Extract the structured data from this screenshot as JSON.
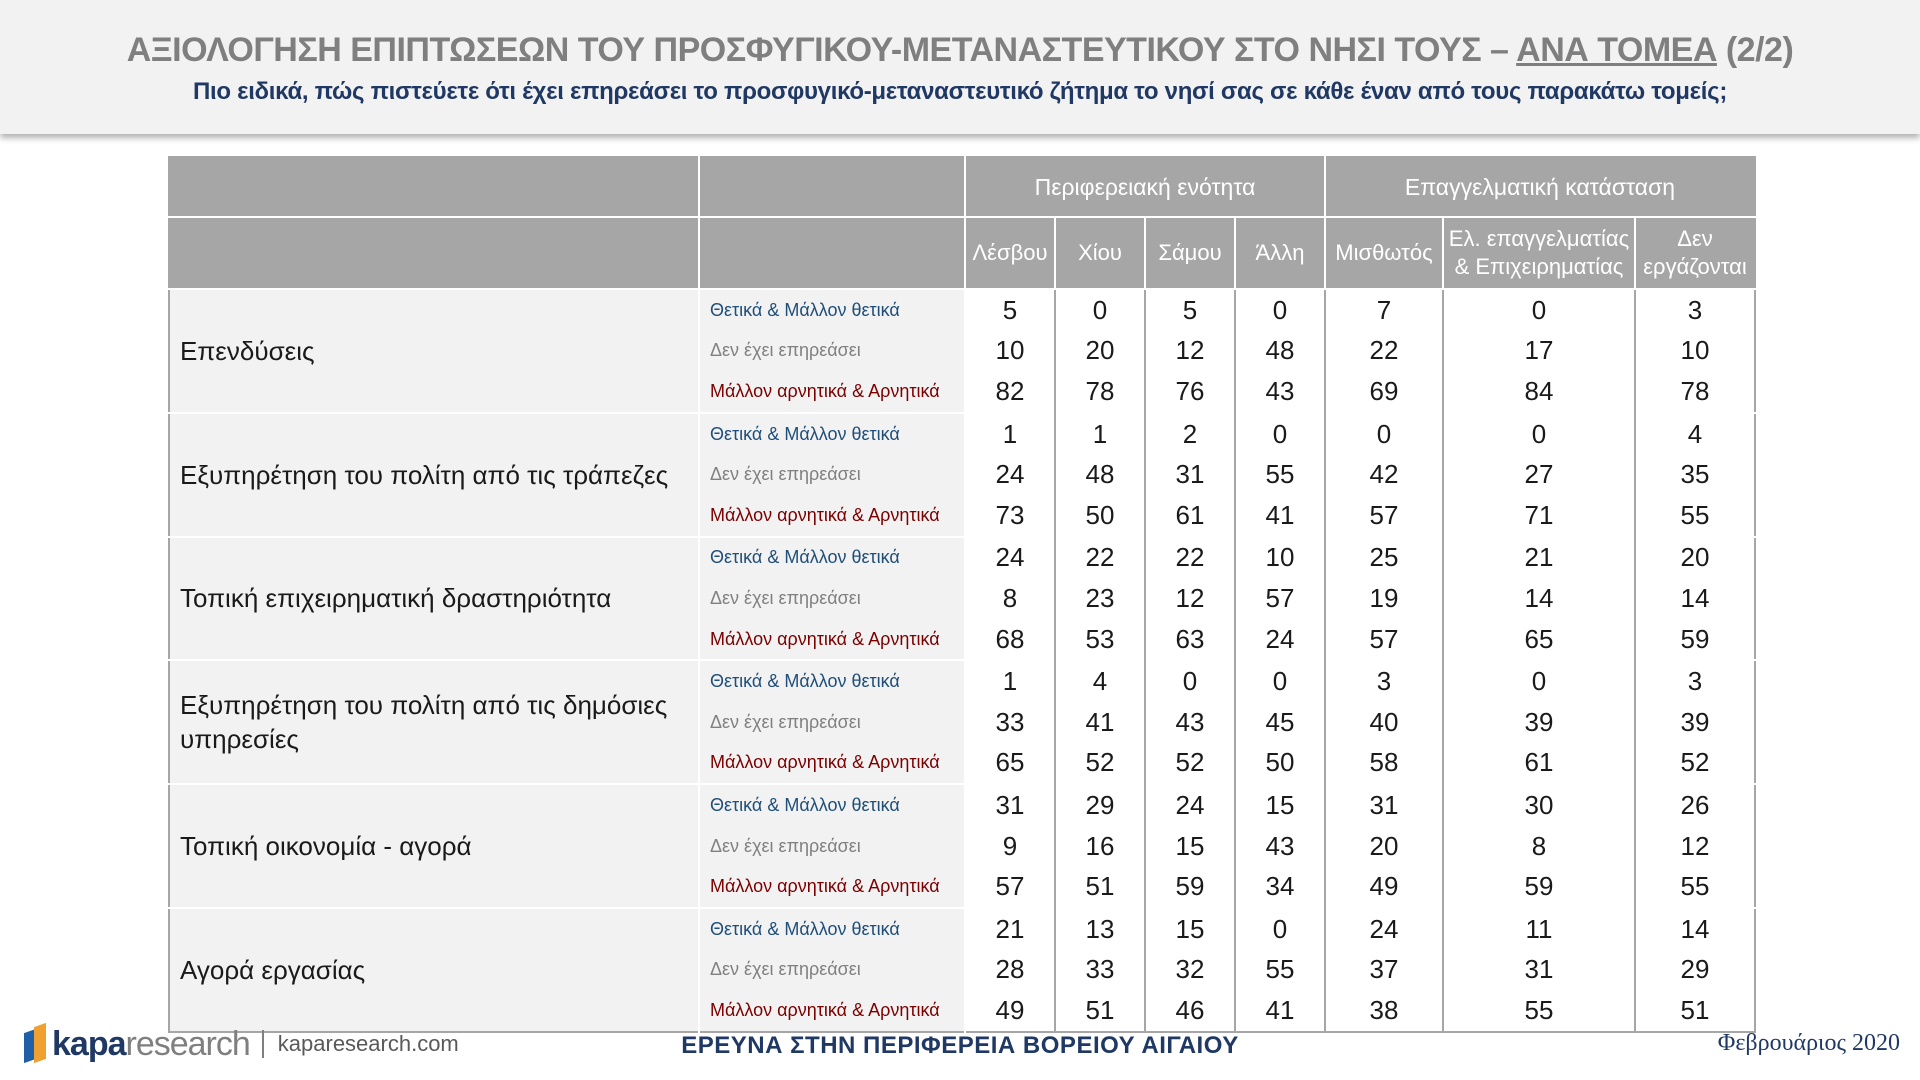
{
  "header": {
    "title_main": "ΑΞΙΟΛΟΓΗΣΗ ΕΠΙΠΤΩΣΕΩΝ ΤΟΥ ΠΡΟΣΦΥΓΙΚΟΥ-ΜΕΤΑΝΑΣΤΕΥΤΙΚΟΥ ΣΤΟ ΝΗΣΙ ΤΟΥΣ – ",
    "title_underlined": "ΑΝΑ ΤΟΜΕΑ",
    "title_suffix": " (2/2)",
    "subtitle": "Πιο ειδικά, πώς πιστεύετε ότι έχει επηρεάσει το προσφυγικό-μεταναστευτικό ζήτημα το νησί σας σε κάθε έναν από τους παρακάτω τομείς;"
  },
  "table": {
    "group_headers": [
      "Περιφερειακή ενότητα",
      "Επαγγελματική κατάσταση"
    ],
    "columns": [
      "Λέσβου",
      "Χίου",
      "Σάμου",
      "Άλλη",
      "Μισθωτός",
      "Ελ. επαγγελματίας & Επιχειρηματίας",
      "Δεν εργάζονται"
    ],
    "response_labels": [
      "Θετικά & Μάλλον θετικά",
      "Δεν έχει επηρεάσει",
      "Μάλλον αρνητικά & Αρνητικά"
    ],
    "sectors": [
      {
        "name": "Επενδύσεις",
        "rows": [
          [
            "5",
            "0",
            "5",
            "0",
            "7",
            "0",
            "3"
          ],
          [
            "10",
            "20",
            "12",
            "48",
            "22",
            "17",
            "10"
          ],
          [
            "82",
            "78",
            "76",
            "43",
            "69",
            "84",
            "78"
          ]
        ]
      },
      {
        "name": "Εξυπηρέτηση του πολίτη από τις τράπεζες",
        "rows": [
          [
            "1",
            "1",
            "2",
            "0",
            "0",
            "0",
            "4"
          ],
          [
            "24",
            "48",
            "31",
            "55",
            "42",
            "27",
            "35"
          ],
          [
            "73",
            "50",
            "61",
            "41",
            "57",
            "71",
            "55"
          ]
        ]
      },
      {
        "name": "Τοπική επιχειρηματική δραστηριότητα",
        "rows": [
          [
            "24",
            "22",
            "22",
            "10",
            "25",
            "21",
            "20"
          ],
          [
            "8",
            "23",
            "12",
            "57",
            "19",
            "14",
            "14"
          ],
          [
            "68",
            "53",
            "63",
            "24",
            "57",
            "65",
            "59"
          ]
        ]
      },
      {
        "name": "Εξυπηρέτηση του πολίτη από τις δημόσιες υπηρεσίες",
        "rows": [
          [
            "1",
            "4",
            "0",
            "0",
            "3",
            "0",
            "3"
          ],
          [
            "33",
            "41",
            "43",
            "45",
            "40",
            "39",
            "39"
          ],
          [
            "65",
            "52",
            "52",
            "50",
            "58",
            "61",
            "52"
          ]
        ]
      },
      {
        "name": "Τοπική οικονομία - αγορά",
        "rows": [
          [
            "31",
            "29",
            "24",
            "15",
            "31",
            "30",
            "26"
          ],
          [
            "9",
            "16",
            "15",
            "43",
            "20",
            "8",
            "12"
          ],
          [
            "57",
            "51",
            "59",
            "34",
            "49",
            "59",
            "55"
          ]
        ]
      },
      {
        "name": "Αγορά εργασίας",
        "rows": [
          [
            "21",
            "13",
            "15",
            "0",
            "24",
            "11",
            "14"
          ],
          [
            "28",
            "33",
            "32",
            "55",
            "37",
            "31",
            "29"
          ],
          [
            "49",
            "51",
            "46",
            "41",
            "38",
            "55",
            "51"
          ]
        ]
      }
    ]
  },
  "footer": {
    "logo_bold": "kapa",
    "logo_rest": "research",
    "url": "kaparesearch.com",
    "center": "ΕΡΕΥΝΑ ΣΤΗΝ ΠΕΡΙΦΕΡΕΙΑ ΒΟΡΕΙΟΥ ΑΙΓΑΙΟΥ",
    "date": "Φεβρουάριος 2020"
  }
}
